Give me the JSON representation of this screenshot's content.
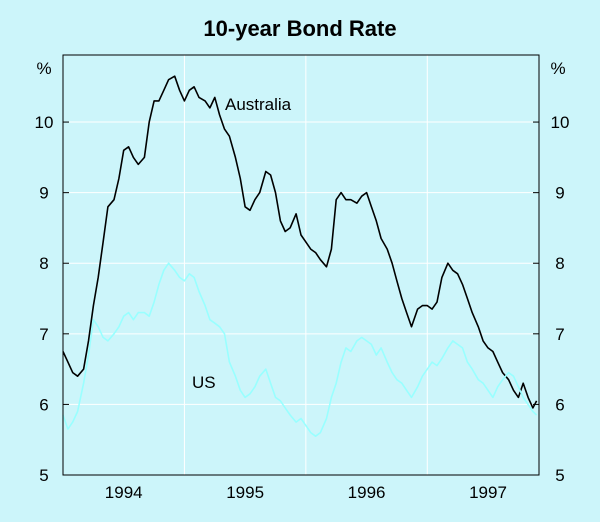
{
  "chart_data": {
    "type": "line",
    "title": "10-year Bond Rate",
    "y_unit_left": "%",
    "y_unit_right": "%",
    "ylim": [
      5,
      10.95
    ],
    "y_ticks": [
      {
        "value": 5,
        "label": "5"
      },
      {
        "value": 6,
        "label": "6"
      },
      {
        "value": 7,
        "label": "7"
      },
      {
        "value": 8,
        "label": "8"
      },
      {
        "value": 9,
        "label": "9"
      },
      {
        "value": 10,
        "label": "10"
      }
    ],
    "xlim": [
      1993.5,
      1997.42
    ],
    "x_ticks": [
      {
        "value": 1994.0,
        "label": "1994"
      },
      {
        "value": 1995.0,
        "label": "1995"
      },
      {
        "value": 1996.0,
        "label": "1996"
      },
      {
        "value": 1997.0,
        "label": "1997"
      }
    ],
    "x_gridlines": [
      1994.5,
      1995.5,
      1996.5
    ],
    "grid": true,
    "legend": "none",
    "series": [
      {
        "name": "Australia",
        "color": "#000000",
        "points": [
          [
            1993.5,
            6.75
          ],
          [
            1993.54,
            6.6
          ],
          [
            1993.58,
            6.45
          ],
          [
            1993.62,
            6.4
          ],
          [
            1993.67,
            6.5
          ],
          [
            1993.71,
            6.9
          ],
          [
            1993.75,
            7.4
          ],
          [
            1993.79,
            7.8
          ],
          [
            1993.83,
            8.3
          ],
          [
            1993.87,
            8.8
          ],
          [
            1993.92,
            8.9
          ],
          [
            1993.96,
            9.2
          ],
          [
            1994.0,
            9.6
          ],
          [
            1994.04,
            9.65
          ],
          [
            1994.08,
            9.5
          ],
          [
            1994.12,
            9.4
          ],
          [
            1994.17,
            9.5
          ],
          [
            1994.21,
            10.0
          ],
          [
            1994.25,
            10.3
          ],
          [
            1994.29,
            10.3
          ],
          [
            1994.33,
            10.45
          ],
          [
            1994.37,
            10.6
          ],
          [
            1994.42,
            10.65
          ],
          [
            1994.46,
            10.45
          ],
          [
            1994.5,
            10.3
          ],
          [
            1994.54,
            10.45
          ],
          [
            1994.58,
            10.5
          ],
          [
            1994.62,
            10.35
          ],
          [
            1994.67,
            10.3
          ],
          [
            1994.71,
            10.2
          ],
          [
            1994.75,
            10.35
          ],
          [
            1994.79,
            10.1
          ],
          [
            1994.83,
            9.9
          ],
          [
            1994.87,
            9.8
          ],
          [
            1994.92,
            9.5
          ],
          [
            1994.96,
            9.2
          ],
          [
            1995.0,
            8.8
          ],
          [
            1995.04,
            8.75
          ],
          [
            1995.08,
            8.9
          ],
          [
            1995.12,
            9.0
          ],
          [
            1995.17,
            9.3
          ],
          [
            1995.21,
            9.25
          ],
          [
            1995.25,
            9.0
          ],
          [
            1995.29,
            8.6
          ],
          [
            1995.33,
            8.45
          ],
          [
            1995.37,
            8.5
          ],
          [
            1995.42,
            8.7
          ],
          [
            1995.46,
            8.4
          ],
          [
            1995.5,
            8.3
          ],
          [
            1995.54,
            8.2
          ],
          [
            1995.58,
            8.15
          ],
          [
            1995.62,
            8.05
          ],
          [
            1995.67,
            7.95
          ],
          [
            1995.71,
            8.2
          ],
          [
            1995.75,
            8.9
          ],
          [
            1995.79,
            9.0
          ],
          [
            1995.83,
            8.9
          ],
          [
            1995.87,
            8.9
          ],
          [
            1995.92,
            8.85
          ],
          [
            1995.96,
            8.95
          ],
          [
            1996.0,
            9.0
          ],
          [
            1996.04,
            8.8
          ],
          [
            1996.08,
            8.6
          ],
          [
            1996.12,
            8.35
          ],
          [
            1996.17,
            8.2
          ],
          [
            1996.21,
            8.0
          ],
          [
            1996.25,
            7.75
          ],
          [
            1996.29,
            7.5
          ],
          [
            1996.33,
            7.3
          ],
          [
            1996.37,
            7.1
          ],
          [
            1996.42,
            7.35
          ],
          [
            1996.46,
            7.4
          ],
          [
            1996.5,
            7.4
          ],
          [
            1996.54,
            7.35
          ],
          [
            1996.58,
            7.45
          ],
          [
            1996.62,
            7.8
          ],
          [
            1996.67,
            8.0
          ],
          [
            1996.71,
            7.9
          ],
          [
            1996.75,
            7.85
          ],
          [
            1996.79,
            7.7
          ],
          [
            1996.83,
            7.5
          ],
          [
            1996.87,
            7.3
          ],
          [
            1996.92,
            7.1
          ],
          [
            1996.96,
            6.9
          ],
          [
            1997.0,
            6.8
          ],
          [
            1997.04,
            6.75
          ],
          [
            1997.08,
            6.6
          ],
          [
            1997.12,
            6.45
          ],
          [
            1997.17,
            6.35
          ],
          [
            1997.21,
            6.2
          ],
          [
            1997.25,
            6.1
          ],
          [
            1997.29,
            6.3
          ],
          [
            1997.33,
            6.1
          ],
          [
            1997.37,
            5.95
          ],
          [
            1997.4,
            6.05
          ]
        ]
      },
      {
        "name": "US",
        "color": "#99ffff",
        "points": [
          [
            1993.5,
            5.85
          ],
          [
            1993.54,
            5.65
          ],
          [
            1993.58,
            5.75
          ],
          [
            1993.62,
            5.9
          ],
          [
            1993.67,
            6.3
          ],
          [
            1993.71,
            6.7
          ],
          [
            1993.75,
            7.2
          ],
          [
            1993.79,
            7.1
          ],
          [
            1993.83,
            6.95
          ],
          [
            1993.87,
            6.9
          ],
          [
            1993.92,
            7.0
          ],
          [
            1993.96,
            7.1
          ],
          [
            1994.0,
            7.25
          ],
          [
            1994.04,
            7.3
          ],
          [
            1994.08,
            7.2
          ],
          [
            1994.12,
            7.3
          ],
          [
            1994.17,
            7.3
          ],
          [
            1994.21,
            7.25
          ],
          [
            1994.25,
            7.45
          ],
          [
            1994.29,
            7.7
          ],
          [
            1994.33,
            7.9
          ],
          [
            1994.37,
            8.0
          ],
          [
            1994.42,
            7.9
          ],
          [
            1994.46,
            7.8
          ],
          [
            1994.5,
            7.75
          ],
          [
            1994.54,
            7.85
          ],
          [
            1994.58,
            7.8
          ],
          [
            1994.62,
            7.6
          ],
          [
            1994.67,
            7.4
          ],
          [
            1994.71,
            7.2
          ],
          [
            1994.75,
            7.15
          ],
          [
            1994.79,
            7.1
          ],
          [
            1994.83,
            7.0
          ],
          [
            1994.87,
            6.6
          ],
          [
            1994.92,
            6.4
          ],
          [
            1994.96,
            6.2
          ],
          [
            1995.0,
            6.1
          ],
          [
            1995.04,
            6.15
          ],
          [
            1995.08,
            6.25
          ],
          [
            1995.12,
            6.4
          ],
          [
            1995.17,
            6.5
          ],
          [
            1995.21,
            6.3
          ],
          [
            1995.25,
            6.1
          ],
          [
            1995.29,
            6.05
          ],
          [
            1995.33,
            5.95
          ],
          [
            1995.37,
            5.85
          ],
          [
            1995.42,
            5.75
          ],
          [
            1995.46,
            5.8
          ],
          [
            1995.5,
            5.7
          ],
          [
            1995.54,
            5.6
          ],
          [
            1995.58,
            5.55
          ],
          [
            1995.62,
            5.6
          ],
          [
            1995.67,
            5.8
          ],
          [
            1995.71,
            6.1
          ],
          [
            1995.75,
            6.3
          ],
          [
            1995.79,
            6.6
          ],
          [
            1995.83,
            6.8
          ],
          [
            1995.87,
            6.75
          ],
          [
            1995.92,
            6.9
          ],
          [
            1995.96,
            6.95
          ],
          [
            1996.0,
            6.9
          ],
          [
            1996.04,
            6.85
          ],
          [
            1996.08,
            6.7
          ],
          [
            1996.12,
            6.8
          ],
          [
            1996.17,
            6.6
          ],
          [
            1996.21,
            6.45
          ],
          [
            1996.25,
            6.35
          ],
          [
            1996.29,
            6.3
          ],
          [
            1996.33,
            6.2
          ],
          [
            1996.37,
            6.1
          ],
          [
            1996.42,
            6.25
          ],
          [
            1996.46,
            6.4
          ],
          [
            1996.5,
            6.5
          ],
          [
            1996.54,
            6.6
          ],
          [
            1996.58,
            6.55
          ],
          [
            1996.62,
            6.65
          ],
          [
            1996.67,
            6.8
          ],
          [
            1996.71,
            6.9
          ],
          [
            1996.75,
            6.85
          ],
          [
            1996.79,
            6.8
          ],
          [
            1996.83,
            6.6
          ],
          [
            1996.87,
            6.5
          ],
          [
            1996.92,
            6.35
          ],
          [
            1996.96,
            6.3
          ],
          [
            1997.0,
            6.2
          ],
          [
            1997.04,
            6.1
          ],
          [
            1997.08,
            6.25
          ],
          [
            1997.12,
            6.35
          ],
          [
            1997.17,
            6.45
          ],
          [
            1997.21,
            6.4
          ],
          [
            1997.25,
            6.25
          ],
          [
            1997.29,
            6.1
          ],
          [
            1997.33,
            6.0
          ],
          [
            1997.37,
            5.9
          ],
          [
            1997.4,
            5.85
          ]
        ]
      }
    ]
  }
}
